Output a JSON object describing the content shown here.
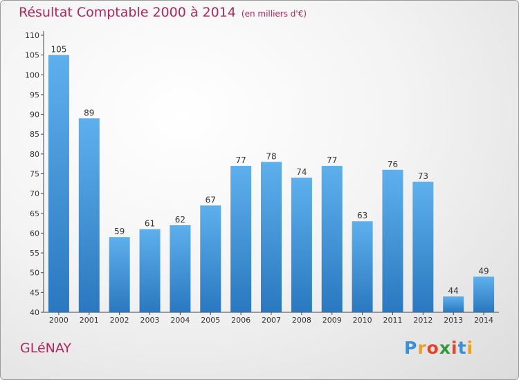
{
  "chart_data": {
    "type": "bar",
    "title": "Résultat Comptable 2000 à 2014",
    "unit": "(en milliers d'€)",
    "categories": [
      "2000",
      "2001",
      "2002",
      "2003",
      "2004",
      "2005",
      "2006",
      "2007",
      "2008",
      "2009",
      "2010",
      "2011",
      "2012",
      "2013",
      "2014"
    ],
    "values": [
      105,
      89,
      59,
      61,
      62,
      67,
      77,
      78,
      74,
      77,
      63,
      76,
      73,
      44,
      49
    ],
    "ylim": [
      40,
      110
    ],
    "yticks": [
      40,
      45,
      50,
      55,
      60,
      65,
      70,
      75,
      80,
      85,
      90,
      95,
      100,
      105,
      110
    ],
    "grid": false,
    "bar_color": "#4a9fe0",
    "xlabel": "",
    "ylabel": ""
  },
  "commune": "GLéNAY",
  "brand": {
    "name": "Proxiti",
    "letters": [
      "P",
      "r",
      "o",
      "x",
      "i",
      "t",
      "i"
    ],
    "colors": [
      "#3a8fd8",
      "#f0a020",
      "#e0452a",
      "#2e9a3a",
      "#e0452a",
      "#3a8fd8",
      "#f0a020"
    ]
  }
}
